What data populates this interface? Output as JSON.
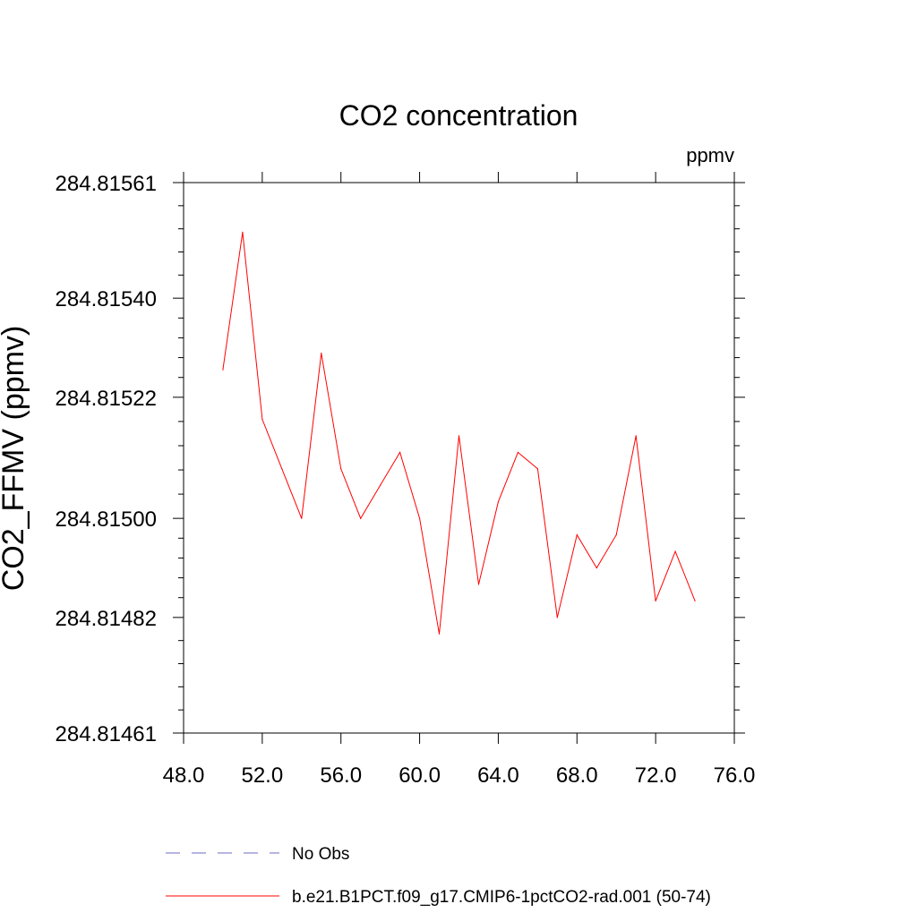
{
  "chart_data": {
    "type": "line",
    "title": "CO2 concentration",
    "units_label": "ppmv",
    "ylabel": "CO2_FFMV  (ppmv)",
    "xlabel": "",
    "xlim": [
      48.0,
      76.0
    ],
    "ylim": [
      284.81461,
      284.81561
    ],
    "x_ticks": [
      48.0,
      52.0,
      56.0,
      60.0,
      64.0,
      68.0,
      72.0,
      76.0
    ],
    "x_tick_labels": [
      "48.0",
      "52.0",
      "56.0",
      "60.0",
      "64.0",
      "68.0",
      "72.0",
      "76.0"
    ],
    "y_ticks": [
      284.81461,
      284.81482,
      284.815,
      284.81522,
      284.8154,
      284.81561
    ],
    "y_tick_labels": [
      "284.81461",
      "284.81482",
      "284.81500",
      "284.81522",
      "284.81540",
      "284.81561"
    ],
    "grid": false,
    "legend_position": "bottom",
    "series": [
      {
        "name": "b.e21.B1PCT.f09_g17.CMIP6-1pctCO2-rad.001 (50-74)",
        "color": "#ff0000",
        "dash": "solid",
        "x": [
          50,
          51,
          52,
          53,
          54,
          55,
          56,
          57,
          58,
          59,
          60,
          61,
          62,
          63,
          64,
          65,
          66,
          67,
          68,
          69,
          70,
          71,
          72,
          73,
          74
        ],
        "y": [
          284.81527,
          284.81552,
          284.81518,
          284.81509,
          284.815,
          284.8153,
          284.81509,
          284.815,
          284.81506,
          284.81512,
          284.815,
          284.81479,
          284.81515,
          284.81488,
          284.81503,
          284.81512,
          284.81509,
          284.81482,
          284.81497,
          284.81491,
          284.81497,
          284.81515,
          284.81485,
          284.81494,
          284.81485
        ]
      }
    ],
    "legend_entries": [
      {
        "label": "No Obs",
        "color": "#6b6bc4",
        "dash": "dashed"
      },
      {
        "label": "b.e21.B1PCT.f09_g17.CMIP6-1pctCO2-rad.001 (50-74)",
        "color": "#ff0000",
        "dash": "solid"
      }
    ]
  }
}
